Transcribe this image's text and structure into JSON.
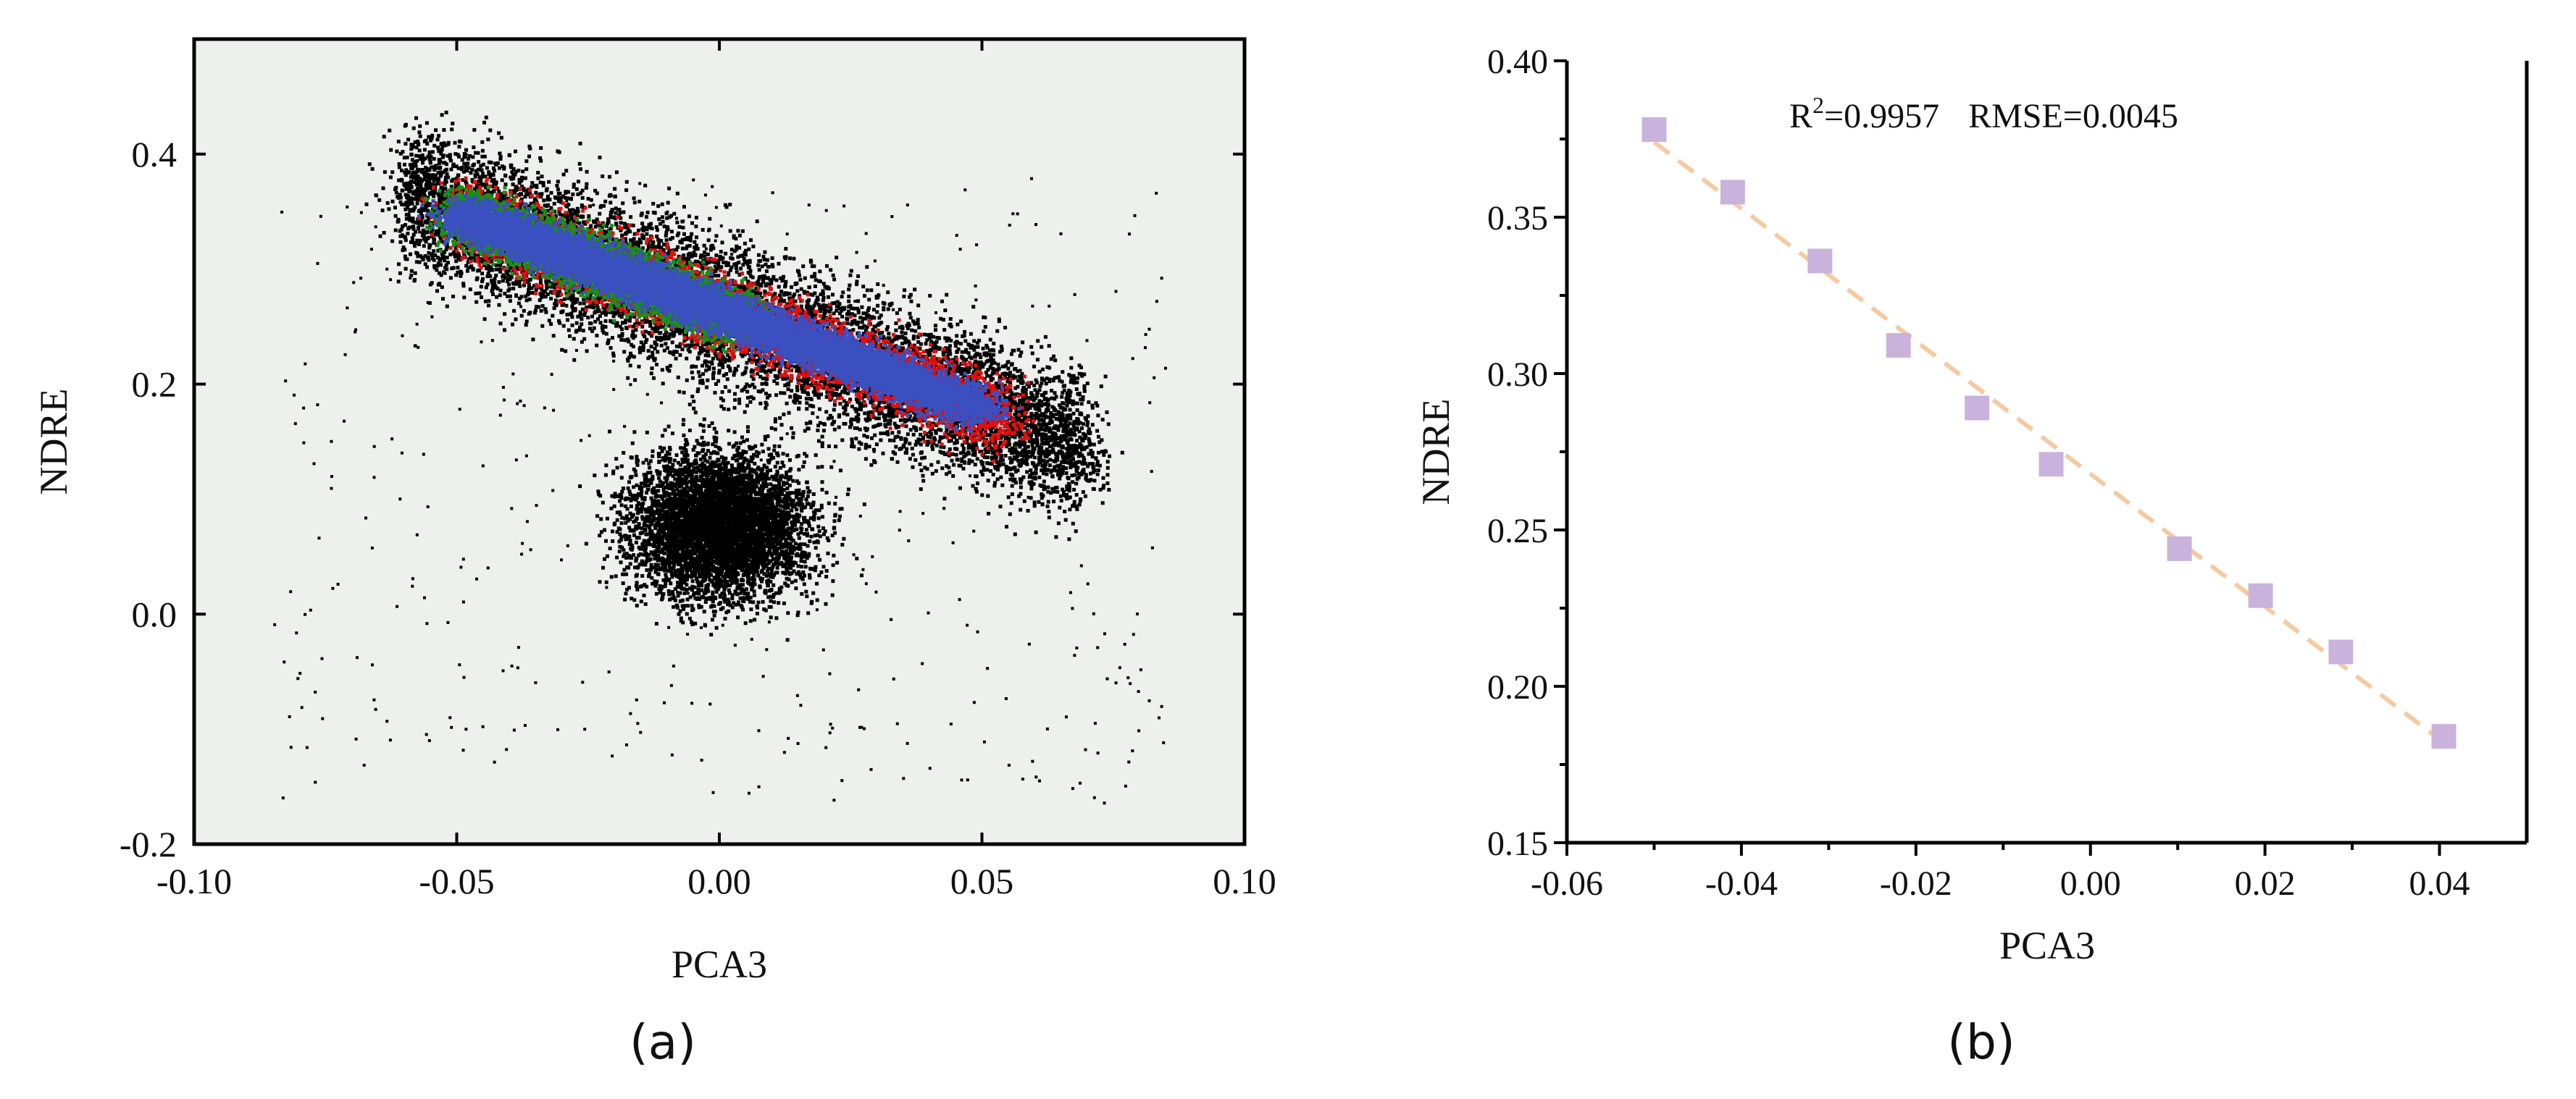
{
  "chart_data": [
    {
      "panel_label": "(a)",
      "type": "scatter",
      "title": "",
      "xlabel": "PCA3",
      "ylabel": "NDRE",
      "xlim": [
        -0.1,
        0.1
      ],
      "ylim": [
        -0.2,
        0.5
      ],
      "x_ticks": [
        "-0.10",
        "-0.05",
        "0.00",
        "0.05",
        "0.10"
      ],
      "x_tick_values": [
        -0.1,
        -0.05,
        0.0,
        0.05,
        0.1
      ],
      "y_ticks": [
        "-0.2",
        "0.0",
        "0.2",
        "0.4"
      ],
      "y_tick_values": [
        -0.2,
        0.0,
        0.2,
        0.4
      ],
      "background_color": "#eef0ee",
      "grid": false,
      "density_scatter": true,
      "layer_colors": {
        "all_pixels": "#000000",
        "outer": "#e01010",
        "middle": "#1a8f1a",
        "core": "#3a4fc0"
      },
      "trend": {
        "center_line_start": [
          -0.05,
          0.35
        ],
        "center_line_end": [
          0.05,
          0.18
        ]
      },
      "black_cloud_center": [
        0.0,
        0.08
      ]
    },
    {
      "panel_label": "(b)",
      "type": "scatter",
      "title": "",
      "xlabel": "PCA3",
      "ylabel": "NDRE",
      "xlim": [
        -0.06,
        0.05
      ],
      "ylim": [
        0.15,
        0.4
      ],
      "x_ticks": [
        "-0.06",
        "-0.04",
        "-0.02",
        "0.00",
        "0.02",
        "0.04"
      ],
      "x_tick_values": [
        -0.06,
        -0.04,
        -0.02,
        0.0,
        0.02,
        0.04
      ],
      "y_ticks": [
        "0.15",
        "0.20",
        "0.25",
        "0.30",
        "0.35",
        "0.40"
      ],
      "y_tick_values": [
        0.15,
        0.2,
        0.25,
        0.3,
        0.35,
        0.4
      ],
      "grid": false,
      "marker_color": "#c9b3dc",
      "fit_line_color": "#f6c9a0",
      "annotation": {
        "r_prefix": "R",
        "r_sup": "2",
        "r_value": "=0.9957",
        "rmse": "RMSE=0.0045"
      },
      "points": {
        "x": [
          -0.05,
          -0.041,
          -0.031,
          -0.022,
          -0.013,
          -0.0045,
          0.0102,
          0.0195,
          0.0287,
          0.0405
        ],
        "y": [
          0.378,
          0.358,
          0.336,
          0.309,
          0.289,
          0.271,
          0.244,
          0.229,
          0.211,
          0.184
        ]
      },
      "fit": {
        "x": [
          -0.05,
          0.0405
        ],
        "y": [
          0.374,
          0.182
        ]
      }
    }
  ]
}
